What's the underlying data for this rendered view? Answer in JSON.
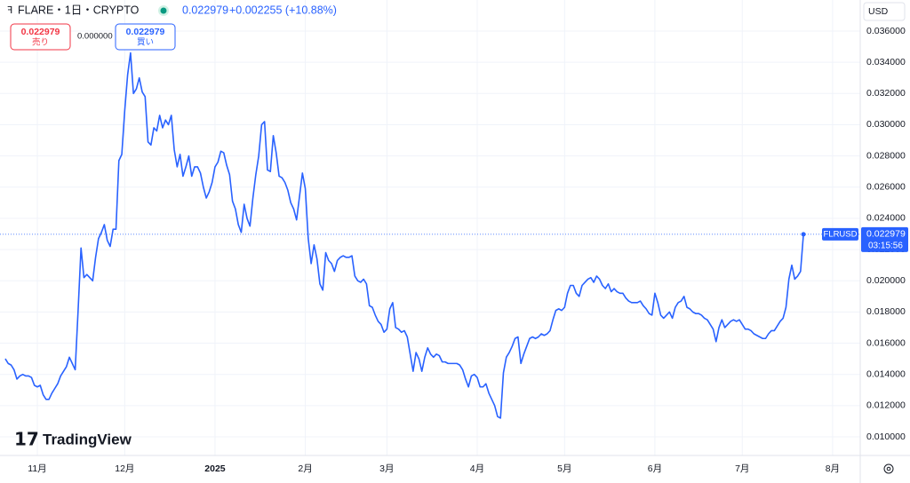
{
  "header": {
    "symbol": "FLARE・1日・CRYPTO",
    "price": "0.022979",
    "change": "+0.002255 (+10.88%)",
    "sell_price": "0.022979",
    "sell_label": "売り",
    "spread": "0.000000",
    "buy_price": "0.022979",
    "buy_label": "買い",
    "currency": "USD",
    "ticker": "FLRUSD",
    "countdown": "03:15:56",
    "logo": "TradingView"
  },
  "chart_data": {
    "type": "line",
    "color": "#2962ff",
    "grid": true,
    "ylim": [
      0.008805,
      0.037991
    ],
    "yticks": [
      {
        "value": 0.01,
        "label": "0.010000"
      },
      {
        "value": 0.012,
        "label": "0.012000"
      },
      {
        "value": 0.014,
        "label": "0.014000"
      },
      {
        "value": 0.016,
        "label": "0.016000"
      },
      {
        "value": 0.018,
        "label": "0.018000"
      },
      {
        "value": 0.02,
        "label": "0.020000"
      },
      {
        "value": 0.022,
        "label": "0.022000"
      },
      {
        "value": 0.024,
        "label": "0.024000"
      },
      {
        "value": 0.026,
        "label": "0.026000"
      },
      {
        "value": 0.028,
        "label": "0.028000"
      },
      {
        "value": 0.03,
        "label": "0.030000"
      },
      {
        "value": 0.032,
        "label": "0.032000"
      },
      {
        "value": 0.034,
        "label": "0.034000"
      },
      {
        "value": 0.036,
        "label": "0.036000"
      }
    ],
    "categories": [
      null,
      null,
      null,
      null,
      null,
      null,
      null,
      null,
      null,
      null,
      null,
      "11月",
      null,
      null,
      null,
      null,
      null,
      null,
      null,
      null,
      null,
      null,
      null,
      null,
      null,
      null,
      null,
      null,
      null,
      null,
      null,
      null,
      null,
      null,
      null,
      null,
      null,
      null,
      null,
      null,
      null,
      "12月",
      null,
      null,
      null,
      null,
      null,
      null,
      null,
      null,
      null,
      null,
      null,
      null,
      null,
      null,
      null,
      null,
      null,
      null,
      null,
      null,
      null,
      null,
      null,
      null,
      null,
      null,
      null,
      null,
      null,
      null,
      "2025",
      null,
      null,
      null,
      null,
      null,
      null,
      null,
      null,
      null,
      null,
      null,
      null,
      null,
      null,
      null,
      null,
      null,
      null,
      null,
      null,
      null,
      null,
      null,
      null,
      null,
      null,
      null,
      null,
      null,
      null,
      "2月",
      null,
      null,
      null,
      null,
      null,
      null,
      null,
      null,
      null,
      null,
      null,
      null,
      null,
      null,
      null,
      null,
      null,
      null,
      null,
      null,
      null,
      null,
      null,
      null,
      null,
      null,
      null,
      "3月",
      null,
      null,
      null,
      null,
      null,
      null,
      null,
      null,
      null,
      null,
      null,
      null,
      null,
      null,
      null,
      null,
      null,
      null,
      null,
      null,
      null,
      null,
      null,
      null,
      null,
      null,
      null,
      null,
      null,
      null,
      "4月",
      null,
      null,
      null,
      null,
      null,
      null,
      null,
      null,
      null,
      null,
      null,
      null,
      null,
      null,
      null,
      null,
      null,
      null,
      null,
      null,
      null,
      null,
      null,
      null,
      null,
      null,
      null,
      null,
      null,
      "5月",
      null,
      null,
      null,
      null,
      null,
      null,
      null,
      null,
      null,
      null,
      null,
      null,
      null,
      null,
      null,
      null,
      null,
      null,
      null,
      null,
      null,
      null,
      null,
      null,
      null,
      null,
      null,
      null,
      null,
      null,
      "6月",
      null,
      null,
      null,
      null,
      null,
      null,
      null,
      null,
      null,
      null,
      null,
      null,
      null,
      null,
      null,
      null,
      null,
      null,
      null,
      null,
      null,
      null,
      null,
      null,
      null,
      null,
      null,
      null,
      null,
      "7月",
      null,
      null,
      null,
      null,
      null,
      null,
      null,
      null,
      null,
      null,
      null,
      null,
      null,
      null,
      null,
      null,
      null,
      null,
      null,
      null,
      null,
      null,
      null,
      null,
      null,
      null,
      null,
      null,
      null,
      null,
      "8月"
    ],
    "values": [
      0.015,
      0.0147,
      0.0146,
      0.0143,
      0.0137,
      0.0139,
      0.014,
      0.0139,
      0.0139,
      0.0138,
      0.0133,
      0.0132,
      0.0133,
      0.0127,
      0.0124,
      0.0124,
      0.0128,
      0.0131,
      0.0134,
      0.0139,
      0.0142,
      0.0145,
      0.0151,
      0.0147,
      0.0143,
      0.0181,
      0.0221,
      0.0202,
      0.0204,
      0.0202,
      0.02,
      0.0215,
      0.0227,
      0.0231,
      0.0236,
      0.0226,
      0.0222,
      0.0233,
      0.0233,
      0.0277,
      0.0281,
      0.0309,
      0.0332,
      0.0346,
      0.032,
      0.0323,
      0.033,
      0.0321,
      0.0318,
      0.0289,
      0.0287,
      0.0298,
      0.0296,
      0.0306,
      0.0298,
      0.0303,
      0.03,
      0.0306,
      0.0284,
      0.0273,
      0.0281,
      0.0267,
      0.0273,
      0.028,
      0.0267,
      0.0273,
      0.0273,
      0.0269,
      0.026,
      0.0253,
      0.0257,
      0.0263,
      0.0273,
      0.0276,
      0.0283,
      0.0282,
      0.0274,
      0.0268,
      0.0251,
      0.0246,
      0.0236,
      0.0231,
      0.0249,
      0.024,
      0.0235,
      0.0253,
      0.0268,
      0.028,
      0.03,
      0.0302,
      0.0271,
      0.027,
      0.0293,
      0.0282,
      0.0267,
      0.0266,
      0.0263,
      0.0258,
      0.025,
      0.0246,
      0.0239,
      0.0254,
      0.0269,
      0.0259,
      0.0227,
      0.0211,
      0.0223,
      0.0214,
      0.0198,
      0.0194,
      0.0218,
      0.0213,
      0.0211,
      0.0206,
      0.0213,
      0.0215,
      0.0216,
      0.0215,
      0.0215,
      0.0216,
      0.0203,
      0.02,
      0.0199,
      0.0201,
      0.0198,
      0.0184,
      0.0183,
      0.0178,
      0.0174,
      0.0172,
      0.0167,
      0.0169,
      0.0182,
      0.0186,
      0.017,
      0.0169,
      0.0167,
      0.0168,
      0.0164,
      0.0153,
      0.0142,
      0.0154,
      0.015,
      0.0142,
      0.0151,
      0.0157,
      0.0153,
      0.0151,
      0.0153,
      0.0152,
      0.0148,
      0.0148,
      0.0147,
      0.0147,
      0.0147,
      0.0147,
      0.0146,
      0.0143,
      0.0137,
      0.0132,
      0.0139,
      0.014,
      0.0138,
      0.0132,
      0.0132,
      0.0134,
      0.0128,
      0.0124,
      0.012,
      0.0113,
      0.0112,
      0.0141,
      0.0151,
      0.0154,
      0.0158,
      0.0163,
      0.0164,
      0.0147,
      0.0153,
      0.0158,
      0.0163,
      0.0164,
      0.0163,
      0.0164,
      0.0166,
      0.0165,
      0.0166,
      0.0168,
      0.0175,
      0.0181,
      0.0182,
      0.0181,
      0.0183,
      0.0192,
      0.0197,
      0.0197,
      0.0192,
      0.019,
      0.0197,
      0.0199,
      0.0201,
      0.0202,
      0.0199,
      0.0203,
      0.0201,
      0.0197,
      0.0195,
      0.0198,
      0.0193,
      0.0195,
      0.0193,
      0.0192,
      0.0192,
      0.0189,
      0.0187,
      0.0186,
      0.0186,
      0.0186,
      0.0187,
      0.0184,
      0.0182,
      0.0179,
      0.0178,
      0.0192,
      0.0186,
      0.0178,
      0.0176,
      0.0178,
      0.018,
      0.0176,
      0.0183,
      0.0186,
      0.0187,
      0.019,
      0.0183,
      0.0182,
      0.018,
      0.0179,
      0.0179,
      0.0178,
      0.0176,
      0.0175,
      0.0172,
      0.0169,
      0.0161,
      0.017,
      0.0175,
      0.017,
      0.0172,
      0.0174,
      0.0175,
      0.0174,
      0.0175,
      0.0172,
      0.0169,
      0.0169,
      0.0168,
      0.0166,
      0.0165,
      0.0164,
      0.0163,
      0.0163,
      0.0166,
      0.0168,
      0.0168,
      0.0171,
      0.0174,
      0.0176,
      0.0183,
      0.0201,
      0.021,
      0.0201,
      0.0203,
      0.0206,
      0.022979,
      null,
      null,
      null,
      null,
      null,
      null,
      null,
      null,
      null,
      null
    ]
  }
}
